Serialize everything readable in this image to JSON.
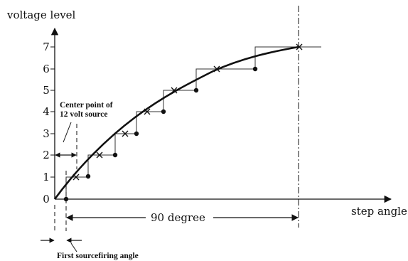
{
  "y_axis": {
    "label": "voltage level",
    "ticks": [
      "0",
      "1",
      "2",
      "3",
      "4",
      "5",
      "6",
      "7"
    ]
  },
  "x_axis": {
    "label": "step angle"
  },
  "dimension": {
    "label": "90 degree"
  },
  "annotations": {
    "center_point_line1": "Center point of",
    "center_point_line2": "12 volt source",
    "first_firing": "First sourcefiring angle"
  },
  "curve": {
    "crosses": [
      [
        1,
        1
      ],
      [
        2,
        2
      ],
      [
        3,
        3
      ],
      [
        4,
        4
      ],
      [
        5,
        5
      ],
      [
        6,
        6
      ],
      [
        7,
        7
      ]
    ],
    "dots": [
      [
        0,
        0
      ],
      [
        1,
        1
      ],
      [
        2,
        2
      ],
      [
        3,
        3
      ],
      [
        4,
        4
      ],
      [
        5,
        5
      ],
      [
        6,
        6
      ]
    ]
  }
}
